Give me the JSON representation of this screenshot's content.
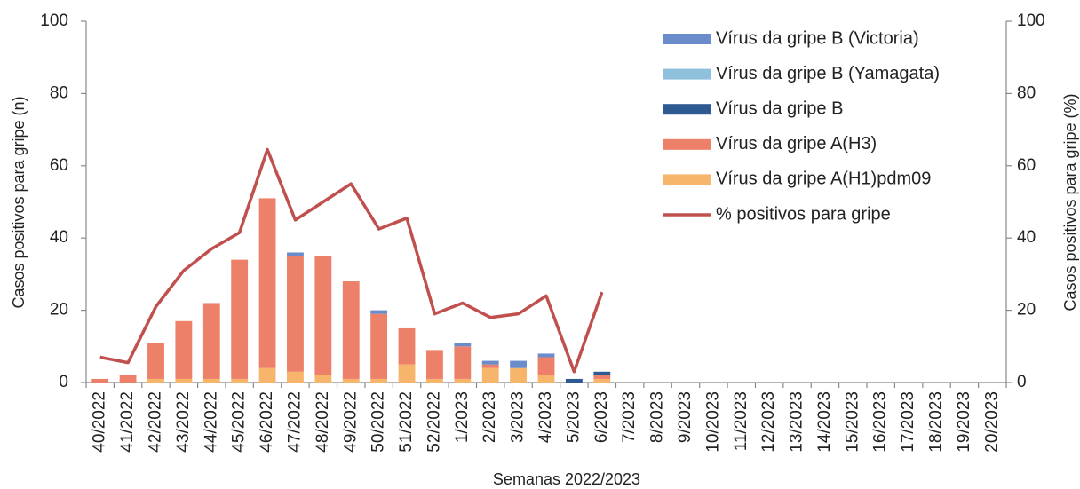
{
  "chart_data": {
    "type": "bar",
    "categories": [
      "40/2022",
      "41/2022",
      "42/2022",
      "43/2022",
      "44/2022",
      "45/2022",
      "46/2022",
      "47/2022",
      "48/2022",
      "49/2022",
      "50/2022",
      "51/2022",
      "52/2022",
      "1/2023",
      "2/2023",
      "3/2023",
      "4/2023",
      "5/2023",
      "6/2023",
      "7/2023",
      "8/2023",
      "9/2023",
      "10/2023",
      "11/2023",
      "12/2023",
      "13/2023",
      "14/2023",
      "15/2023",
      "16/2023",
      "17/2023",
      "18/2023",
      "19/2023",
      "20/2023"
    ],
    "x_label": "Semanas 2022/2023",
    "y_label": "Casos positivos para gripe (n)",
    "y2_label": "Casos positivos para gripe (%)",
    "ylim": [
      0,
      100
    ],
    "yticks": [
      0,
      20,
      40,
      60,
      80,
      100
    ],
    "y2lim": [
      0,
      100
    ],
    "y2ticks": [
      0,
      20,
      40,
      60,
      80,
      100
    ],
    "stacked": true,
    "legend": "top-right",
    "series": [
      {
        "name": "Vírus da gripe B (Victoria)",
        "color": "#6a8ccb",
        "type": "bar",
        "values": [
          0,
          0,
          0,
          0,
          0,
          0,
          0,
          1,
          0,
          0,
          1,
          0,
          0,
          1,
          1,
          2,
          1,
          0,
          0,
          0,
          0,
          0,
          0,
          0,
          0,
          0,
          0,
          0,
          0,
          0,
          0,
          0,
          0
        ]
      },
      {
        "name": "Vírus da gripe B (Yamagata)",
        "color": "#8fc1dc",
        "type": "bar",
        "values": [
          0,
          0,
          0,
          0,
          0,
          0,
          0,
          0,
          0,
          0,
          0,
          0,
          0,
          0,
          0,
          0,
          0,
          0,
          0,
          0,
          0,
          0,
          0,
          0,
          0,
          0,
          0,
          0,
          0,
          0,
          0,
          0,
          0
        ]
      },
      {
        "name": "Vírus da gripe B",
        "color": "#2e5a92",
        "type": "bar",
        "values": [
          0,
          0,
          0,
          0,
          0,
          0,
          0,
          0,
          0,
          0,
          0,
          0,
          0,
          0,
          0,
          0,
          0,
          1,
          1,
          0,
          0,
          0,
          0,
          0,
          0,
          0,
          0,
          0,
          0,
          0,
          0,
          0,
          0
        ]
      },
      {
        "name": "Vírus da gripe A(H3)",
        "color": "#ec8068",
        "type": "bar",
        "values": [
          1,
          2,
          10,
          16,
          21,
          33,
          47,
          32,
          33,
          27,
          18,
          10,
          8,
          9,
          1,
          0,
          5,
          0,
          1,
          0,
          0,
          0,
          0,
          0,
          0,
          0,
          0,
          0,
          0,
          0,
          0,
          0,
          0
        ]
      },
      {
        "name": "Vírus da gripe A(H1)pdm09",
        "color": "#f7b46b",
        "type": "bar",
        "values": [
          0,
          0,
          1,
          1,
          1,
          1,
          4,
          3,
          2,
          1,
          1,
          5,
          1,
          1,
          4,
          4,
          2,
          0,
          1,
          0,
          0,
          0,
          0,
          0,
          0,
          0,
          0,
          0,
          0,
          0,
          0,
          0,
          0
        ]
      },
      {
        "name": "% positivos para gripe",
        "color": "#c0504d",
        "type": "line",
        "axis": "y2",
        "values": [
          7,
          5.5,
          21,
          31,
          37,
          41.5,
          64.5,
          45,
          50,
          55,
          42.5,
          45.5,
          19,
          22,
          18,
          19,
          24,
          3,
          25,
          null,
          null,
          null,
          null,
          null,
          null,
          null,
          null,
          null,
          null,
          null,
          null,
          null,
          null
        ]
      }
    ]
  }
}
